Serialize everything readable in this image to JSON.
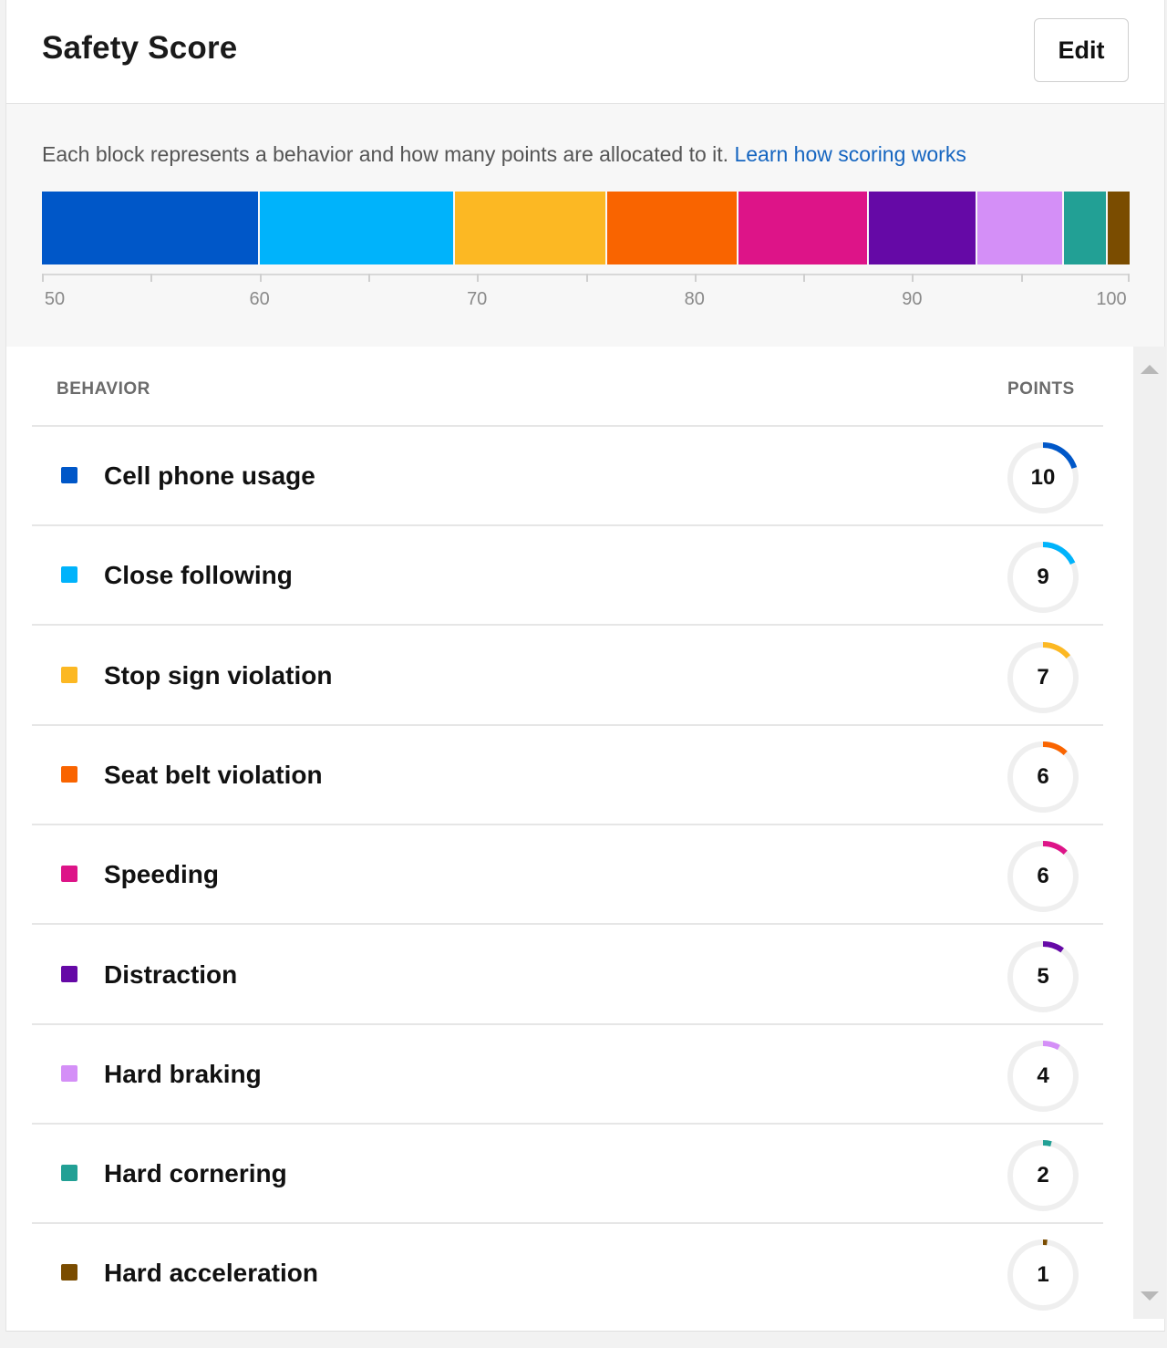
{
  "header": {
    "title": "Safety Score",
    "edit_label": "Edit"
  },
  "info": {
    "description": "Each block represents a behavior and how many points are allocated to it.",
    "learn_link": "Learn how scoring works"
  },
  "bar": {
    "start": 50,
    "end": 100,
    "segments": [
      {
        "behavior": "Cell phone usage",
        "points": 10,
        "color": "#0057c8"
      },
      {
        "behavior": "Close following",
        "points": 9,
        "color": "#00b3fb"
      },
      {
        "behavior": "Stop sign violation",
        "points": 7,
        "color": "#fcb823"
      },
      {
        "behavior": "Seat belt violation",
        "points": 6,
        "color": "#f96400"
      },
      {
        "behavior": "Speeding",
        "points": 6,
        "color": "#dd1488"
      },
      {
        "behavior": "Distraction",
        "points": 5,
        "color": "#6509a6"
      },
      {
        "behavior": "Hard braking",
        "points": 4,
        "color": "#d48ff7"
      },
      {
        "behavior": "Hard cornering",
        "points": 2,
        "color": "#22a095"
      },
      {
        "behavior": "Hard acceleration",
        "points": 1,
        "color": "#7a4c00"
      }
    ],
    "axis_labels": [
      "50",
      "60",
      "70",
      "80",
      "90",
      "100"
    ],
    "axis_minor_ticks": [
      55,
      65,
      75,
      85,
      95
    ]
  },
  "table": {
    "col_behavior": "BEHAVIOR",
    "col_points": "POINTS",
    "ring_max": 50,
    "rows": [
      {
        "label": "Cell phone usage",
        "points": "10",
        "value": 10,
        "color": "#0057c8"
      },
      {
        "label": "Close following",
        "points": "9",
        "value": 9,
        "color": "#00b3fb"
      },
      {
        "label": "Stop sign violation",
        "points": "7",
        "value": 7,
        "color": "#fcb823"
      },
      {
        "label": "Seat belt violation",
        "points": "6",
        "value": 6,
        "color": "#f96400"
      },
      {
        "label": "Speeding",
        "points": "6",
        "value": 6,
        "color": "#dd1488"
      },
      {
        "label": "Distraction",
        "points": "5",
        "value": 5,
        "color": "#6509a6"
      },
      {
        "label": "Hard braking",
        "points": "4",
        "value": 4,
        "color": "#d48ff7"
      },
      {
        "label": "Hard cornering",
        "points": "2",
        "value": 2,
        "color": "#22a095"
      },
      {
        "label": "Hard acceleration",
        "points": "1",
        "value": 1,
        "color": "#7a4c00"
      }
    ]
  }
}
